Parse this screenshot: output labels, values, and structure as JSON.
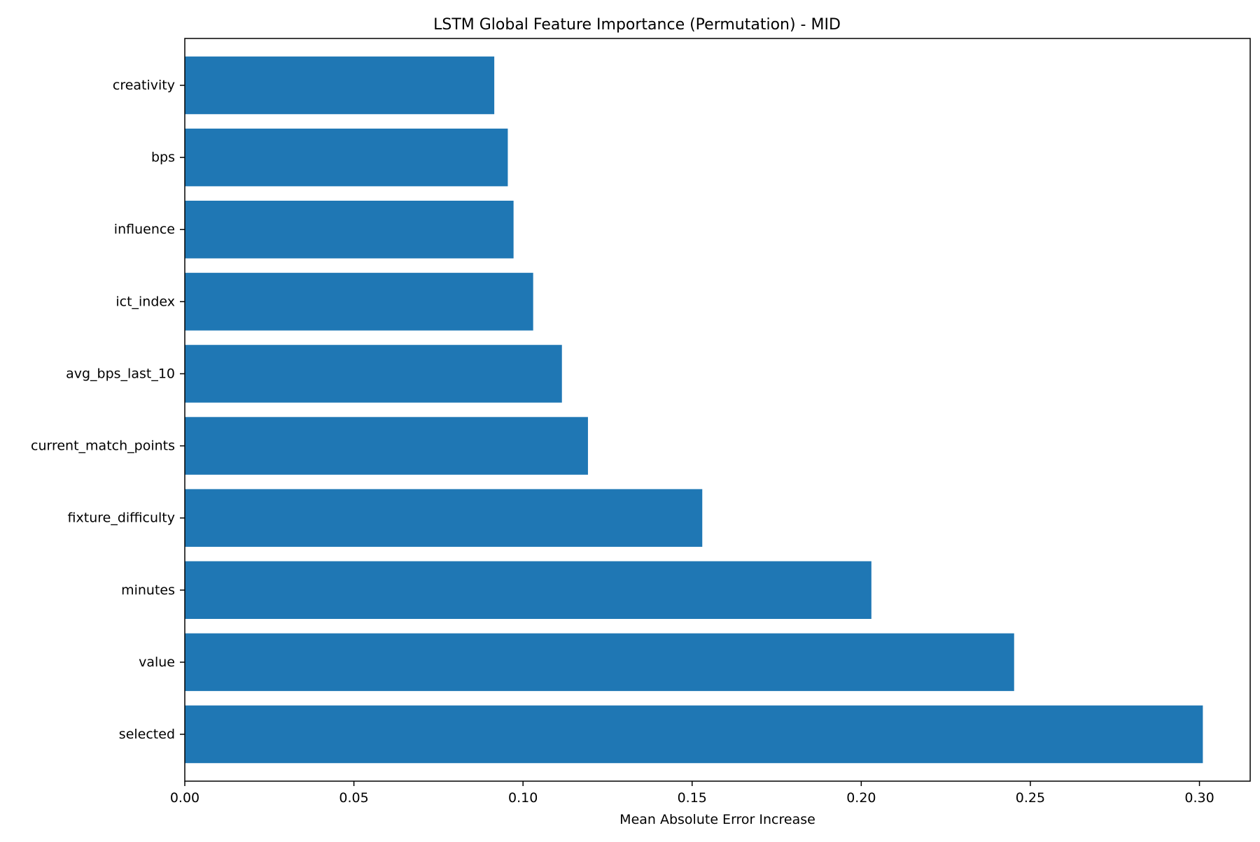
{
  "chart_data": {
    "type": "bar",
    "orientation": "horizontal",
    "title": "LSTM Global Feature Importance (Permutation) - MID",
    "xlabel": "Mean Absolute Error Increase",
    "ylabel": "",
    "xlim": [
      0,
      0.315
    ],
    "xticks": [
      0.0,
      0.05,
      0.1,
      0.15,
      0.2,
      0.25,
      0.3
    ],
    "xtick_labels": [
      "0.00",
      "0.05",
      "0.10",
      "0.15",
      "0.20",
      "0.25",
      "0.30"
    ],
    "categories": [
      "creativity",
      "bps",
      "influence",
      "ict_index",
      "avg_bps_last_10",
      "current_match_points",
      "fixture_difficulty",
      "minutes",
      "value",
      "selected"
    ],
    "values": [
      0.0915,
      0.0955,
      0.0972,
      0.103,
      0.1115,
      0.1192,
      0.153,
      0.203,
      0.2452,
      0.301
    ],
    "bar_color": "#1f77b4",
    "grid": false,
    "legend": "none"
  }
}
